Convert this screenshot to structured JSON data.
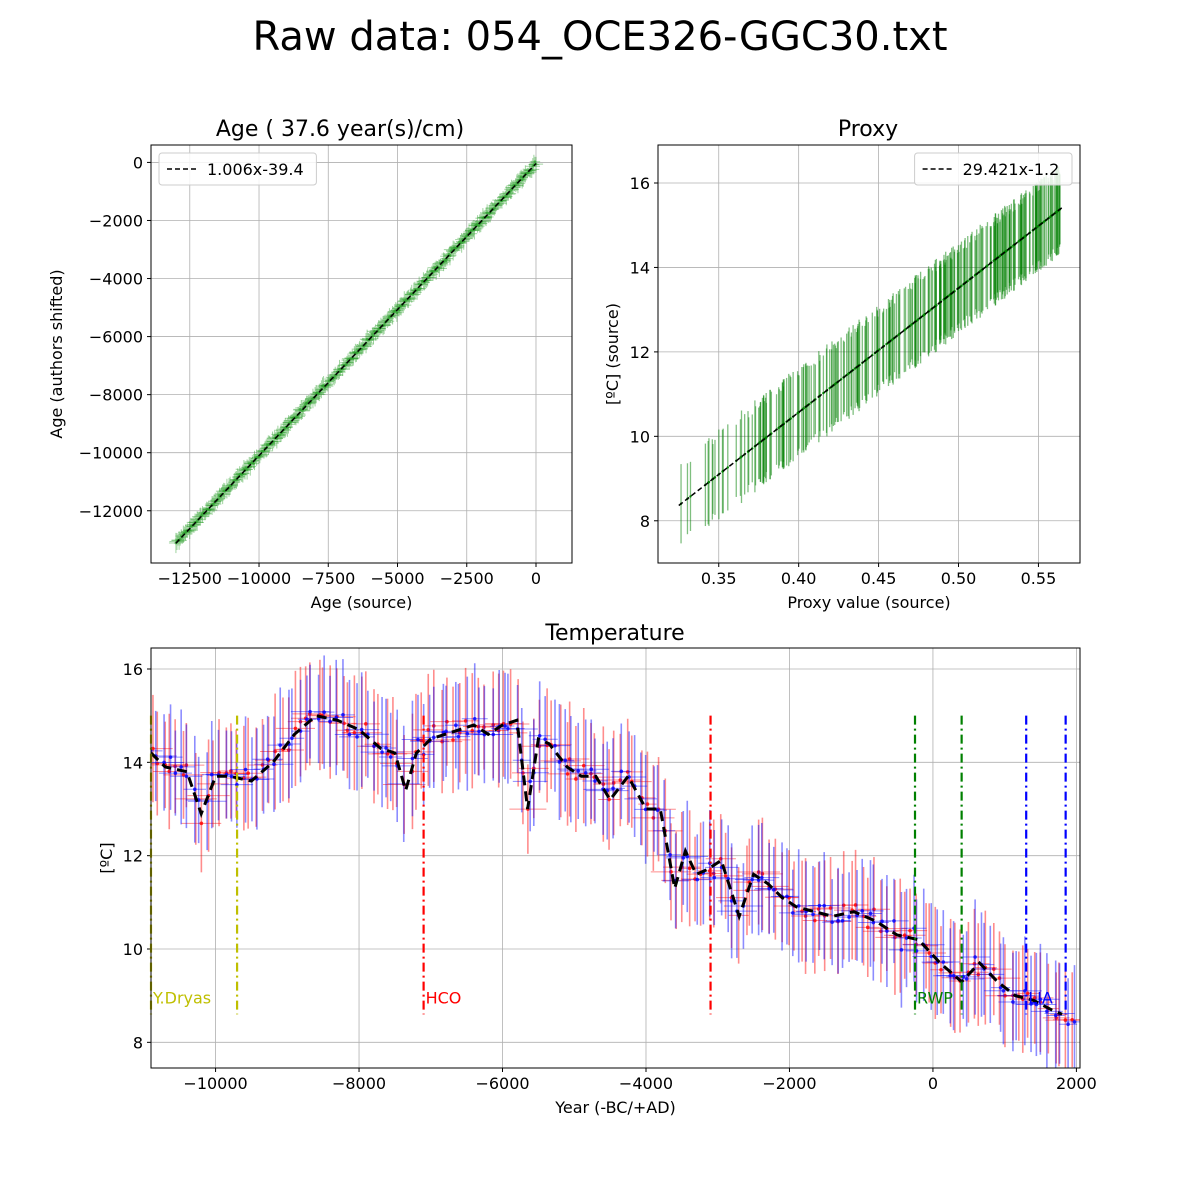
{
  "figure_title": "Raw data: 054_OCE326-GGC30.txt",
  "chart_data": [
    {
      "id": "age",
      "type": "scatter",
      "title": "Age ( 37.6 year(s)/cm)",
      "xlabel": "Age (source)",
      "ylabel": "Age (authors shifted)",
      "xlim": [
        -13900,
        1300
      ],
      "ylim": [
        -13800,
        600
      ],
      "xticks": [
        -12500,
        -10000,
        -7500,
        -5000,
        -2500,
        0
      ],
      "xtick_labels": [
        "−12500",
        "−10000",
        "−7500",
        "−5000",
        "−2500",
        "0"
      ],
      "yticks": [
        0,
        -2000,
        -4000,
        -6000,
        -8000,
        -10000,
        -12000
      ],
      "ytick_labels": [
        "0",
        "−2000",
        "−4000",
        "−6000",
        "−8000",
        "−10000",
        "−12000"
      ],
      "grid": true,
      "legend": {
        "position": "top-left",
        "label": "1.006x-39.4"
      },
      "fit": {
        "slope": 1.006,
        "intercept": -39.4
      },
      "series_color": "#2ca02c",
      "x_range": [
        -13000,
        0
      ],
      "n_points": 340,
      "y_error_approx": 250
    },
    {
      "id": "proxy",
      "type": "scatter",
      "title": "Proxy",
      "xlabel": "Proxy value (source)",
      "ylabel": "[ºC] (source)",
      "xlim": [
        0.312,
        0.576
      ],
      "ylim": [
        7.0,
        16.9
      ],
      "xticks": [
        0.35,
        0.4,
        0.45,
        0.5,
        0.55
      ],
      "xtick_labels": [
        "0.35",
        "0.40",
        "0.45",
        "0.50",
        "0.55"
      ],
      "yticks": [
        8,
        10,
        12,
        14,
        16
      ],
      "ytick_labels": [
        "8",
        "10",
        "12",
        "14",
        "16"
      ],
      "grid": true,
      "legend": {
        "position": "top-right",
        "label": "29.421x-1.2"
      },
      "fit": {
        "slope": 29.421,
        "intercept": -1.2
      },
      "series_color": "#008000",
      "x_range": [
        0.325,
        0.565
      ],
      "n_points": 300,
      "y_error_approx": 1.0
    },
    {
      "id": "temperature",
      "type": "line",
      "title": "Temperature",
      "xlabel": "Year (-BC/+AD)",
      "ylabel": "[ºC]",
      "xlim": [
        -10900,
        2050
      ],
      "ylim": [
        7.45,
        16.45
      ],
      "xticks": [
        -10000,
        -8000,
        -6000,
        -4000,
        -2000,
        0,
        2000
      ],
      "xtick_labels": [
        "−10000",
        "−8000",
        "−6000",
        "−4000",
        "−2000",
        "0",
        "2000"
      ],
      "yticks": [
        8,
        10,
        12,
        14,
        16
      ],
      "ytick_labels": [
        "8",
        "10",
        "12",
        "14",
        "16"
      ],
      "grid": true,
      "mean_line": {
        "x": [
          -10900,
          -10700,
          -10400,
          -10200,
          -10000,
          -9800,
          -9500,
          -9200,
          -8900,
          -8600,
          -8300,
          -8000,
          -7700,
          -7500,
          -7350,
          -7200,
          -7000,
          -6800,
          -6600,
          -6400,
          -6200,
          -6000,
          -5800,
          -5650,
          -5500,
          -5350,
          -5100,
          -4900,
          -4700,
          -4500,
          -4250,
          -4000,
          -3800,
          -3600,
          -3450,
          -3300,
          -3150,
          -2950,
          -2700,
          -2500,
          -2300,
          -2100,
          -1900,
          -1650,
          -1400,
          -1100,
          -800,
          -500,
          -200,
          100,
          400,
          650,
          900,
          1150,
          1400,
          1650,
          1800
        ],
        "y": [
          14.2,
          13.9,
          13.8,
          12.9,
          13.7,
          13.7,
          13.6,
          14.0,
          14.6,
          15.0,
          14.9,
          14.7,
          14.3,
          14.2,
          13.4,
          14.2,
          14.5,
          14.6,
          14.7,
          14.8,
          14.6,
          14.8,
          14.9,
          13.0,
          14.5,
          14.4,
          13.9,
          13.7,
          13.7,
          13.2,
          13.7,
          13.0,
          13.0,
          11.3,
          12.1,
          11.6,
          11.7,
          11.9,
          10.7,
          11.6,
          11.4,
          11.1,
          10.9,
          10.8,
          10.7,
          10.8,
          10.6,
          10.3,
          10.2,
          9.7,
          9.3,
          9.7,
          9.3,
          9.0,
          8.9,
          8.7,
          8.6
        ]
      },
      "series": [
        {
          "color": "#ff0000",
          "role": "scatter with error bars"
        },
        {
          "color": "#0000ff",
          "role": "scatter with error bars"
        }
      ],
      "events": [
        {
          "label": "Y.Dryas",
          "color": "#bfbf00",
          "x": [
            -10900,
            -9700
          ]
        },
        {
          "label": "HCO",
          "color": "#ff0000",
          "x": [
            -7100,
            -3100
          ]
        },
        {
          "label": "RWP",
          "color": "#008000",
          "x": [
            -250,
            400
          ]
        },
        {
          "label": "LIA",
          "color": "#0000ff",
          "x": [
            1300,
            1850
          ]
        }
      ]
    }
  ]
}
